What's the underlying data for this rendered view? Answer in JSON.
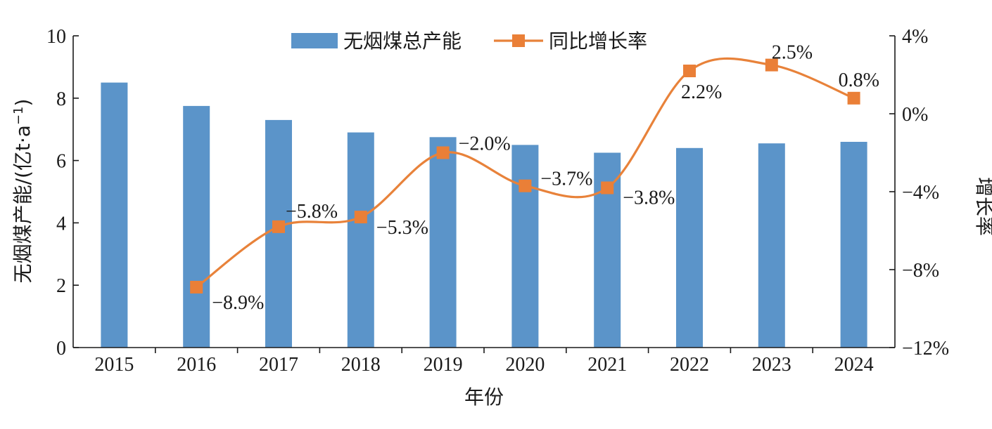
{
  "chart_data": {
    "type": "bar",
    "categories": [
      "2015",
      "2016",
      "2017",
      "2018",
      "2019",
      "2020",
      "2021",
      "2022",
      "2023",
      "2024"
    ],
    "series": [
      {
        "name": "无烟煤总产能",
        "type": "bar",
        "axis": "left",
        "values": [
          8.5,
          7.75,
          7.3,
          6.9,
          6.75,
          6.5,
          6.25,
          6.4,
          6.55,
          6.6
        ]
      },
      {
        "name": "同比增长率",
        "type": "line",
        "axis": "right",
        "values": [
          null,
          -8.9,
          -5.8,
          -5.3,
          -2.0,
          -3.7,
          -3.8,
          2.2,
          2.5,
          0.8
        ],
        "labels": [
          "",
          "−8.9%",
          "−5.8%",
          "−5.3%",
          "−2.0%",
          "−3.7%",
          "−3.8%",
          "2.2%",
          "2.5%",
          "0.8%"
        ]
      }
    ],
    "xlabel": "年份",
    "ylabel": "无烟煤产能/(亿t·a",
    "ylabel_sup": "−1",
    "ylabel_close": ")",
    "y2label": "增长率",
    "ylim": [
      0,
      10
    ],
    "yticks": [
      "0",
      "2",
      "4",
      "6",
      "8",
      "10"
    ],
    "y2lim": [
      -12,
      4
    ],
    "y2ticks": [
      "−12%",
      "−8%",
      "−4%",
      "0%",
      "4%"
    ],
    "legend_position": "top-center",
    "grid": false,
    "colors": {
      "bar": "#5b94c9",
      "line": "#e8823a",
      "marker": "#ea7f37",
      "axis": "#1a1a1a"
    }
  }
}
